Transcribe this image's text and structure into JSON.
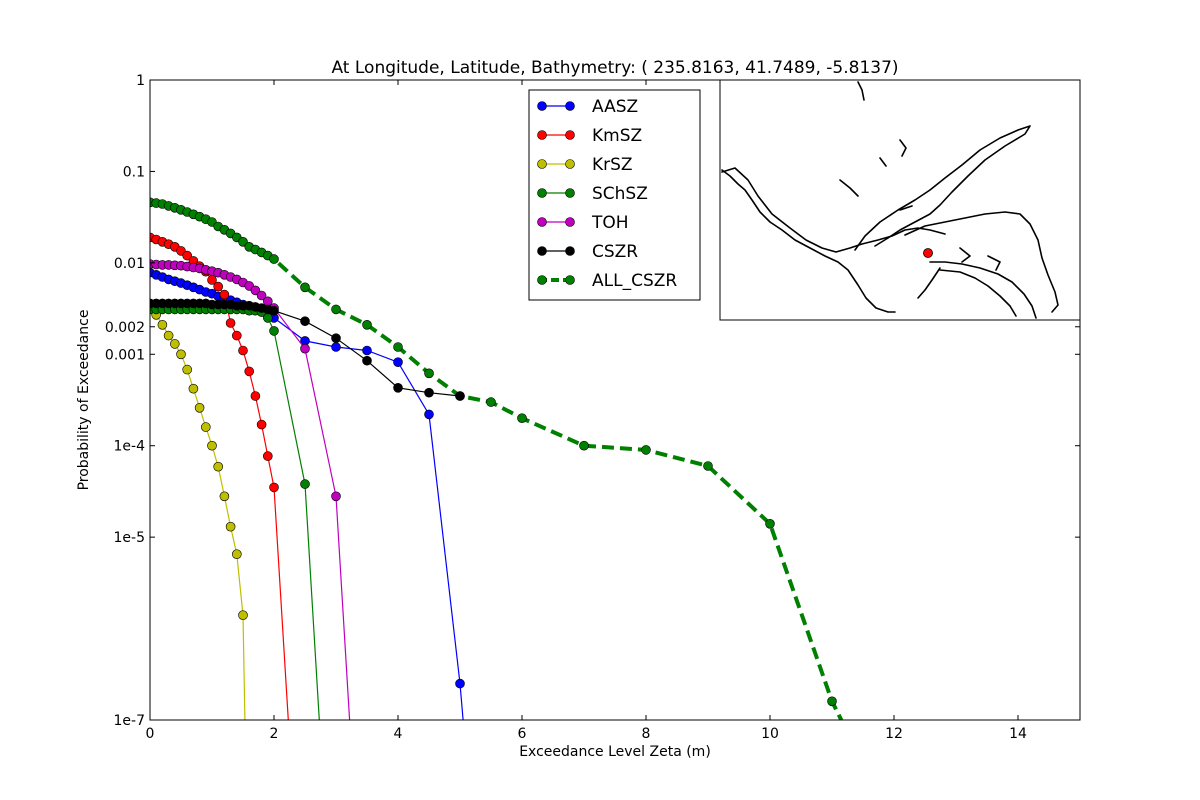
{
  "chart_data": {
    "type": "line",
    "title": "At Longitude, Latitude, Bathymetry:  ( 235.8163,  41.7489,  -5.8137)",
    "xlabel": "Exceedance Level Zeta (m)",
    "ylabel": "Probability of Exceedance",
    "x_scale": "linear",
    "y_scale": "log",
    "xlim": [
      0,
      15
    ],
    "ylim": [
      1e-07,
      1
    ],
    "x_ticks": [
      0,
      2,
      4,
      6,
      8,
      10,
      12,
      14
    ],
    "x_tick_labels": [
      "0",
      "2",
      "4",
      "6",
      "8",
      "10",
      "12",
      "14"
    ],
    "y_ticks": [
      1e-07,
      1e-05,
      0.0001,
      0.001,
      0.002,
      0.01,
      0.1,
      1
    ],
    "y_tick_labels": [
      "1e-7",
      "1e-5",
      "1e-4",
      "0.001",
      "0.002",
      "0.01",
      "0.1",
      "1"
    ],
    "grid": false,
    "legend_position": "upper center",
    "series": [
      {
        "name": "AASZ",
        "color": "#0000ff",
        "dashed": false,
        "line_end": [
          5.05,
          1e-07
        ],
        "x": [
          0,
          0.1,
          0.2,
          0.3,
          0.4,
          0.5,
          0.6,
          0.7,
          0.8,
          0.9,
          1.0,
          1.1,
          1.2,
          1.3,
          1.4,
          1.5,
          1.6,
          1.7,
          1.8,
          1.9,
          2.0,
          2.5,
          3.0,
          3.5,
          4.0,
          4.5,
          5.0
        ],
        "y": [
          0.0078,
          0.0074,
          0.007,
          0.0066,
          0.0063,
          0.006,
          0.0057,
          0.0054,
          0.0051,
          0.0048,
          0.0046,
          0.0043,
          0.0041,
          0.0039,
          0.0037,
          0.0035,
          0.0033,
          0.0031,
          0.0029,
          0.0027,
          0.0025,
          0.0014,
          0.0012,
          0.0011,
          0.00082,
          0.00022,
          2.5e-07
        ]
      },
      {
        "name": "KmSZ",
        "color": "#ff0000",
        "dashed": false,
        "line_end": [
          2.23,
          1e-07
        ],
        "x": [
          0,
          0.1,
          0.2,
          0.3,
          0.4,
          0.5,
          0.6,
          0.7,
          0.8,
          0.9,
          1.0,
          1.1,
          1.2,
          1.3,
          1.4,
          1.5,
          1.6,
          1.7,
          1.8,
          1.9,
          2.0
        ],
        "y": [
          0.019,
          0.018,
          0.017,
          0.016,
          0.015,
          0.0135,
          0.012,
          0.0105,
          0.0092,
          0.008,
          0.0065,
          0.0055,
          0.0045,
          0.0022,
          0.0016,
          0.0011,
          0.00065,
          0.00035,
          0.00017,
          7.7e-05,
          3.5e-05
        ]
      },
      {
        "name": "KrSZ",
        "color": "#bfbf00",
        "dashed": false,
        "line_end": [
          1.53,
          1e-07
        ],
        "x": [
          0.1,
          0.2,
          0.3,
          0.4,
          0.5,
          0.6,
          0.7,
          0.8,
          0.9,
          1.0,
          1.1,
          1.2,
          1.3,
          1.4,
          1.5
        ],
        "y": [
          0.0027,
          0.0021,
          0.0016,
          0.0013,
          0.001,
          0.00068,
          0.00042,
          0.00026,
          0.00016,
          0.0001,
          5.9e-05,
          2.8e-05,
          1.3e-05,
          6.5e-06,
          1.4e-06
        ]
      },
      {
        "name": "SChSZ",
        "color": "#008000",
        "dashed": false,
        "line_end": [
          2.73,
          1e-07
        ],
        "x": [
          0,
          0.1,
          0.2,
          0.3,
          0.4,
          0.5,
          0.6,
          0.7,
          0.8,
          0.9,
          1.0,
          1.1,
          1.2,
          1.3,
          1.4,
          1.5,
          1.6,
          1.7,
          1.8,
          1.9,
          2.0,
          2.5
        ],
        "y": [
          0.0031,
          0.0031,
          0.0031,
          0.0031,
          0.0031,
          0.0031,
          0.0031,
          0.0031,
          0.0031,
          0.0031,
          0.0031,
          0.0031,
          0.0031,
          0.0031,
          0.0031,
          0.0031,
          0.003,
          0.003,
          0.0029,
          0.0025,
          0.0018,
          3.8e-05
        ]
      },
      {
        "name": "TOH",
        "color": "#bf00bf",
        "dashed": false,
        "line_end": [
          3.22,
          1e-07
        ],
        "x": [
          0,
          0.1,
          0.2,
          0.3,
          0.4,
          0.5,
          0.6,
          0.7,
          0.8,
          0.9,
          1.0,
          1.1,
          1.2,
          1.3,
          1.4,
          1.5,
          1.6,
          1.7,
          1.8,
          1.9,
          2.0,
          2.5,
          3.0
        ],
        "y": [
          0.0097,
          0.0096,
          0.0095,
          0.0095,
          0.0094,
          0.0093,
          0.0091,
          0.0089,
          0.0087,
          0.0084,
          0.0081,
          0.0078,
          0.0074,
          0.007,
          0.0066,
          0.0061,
          0.0056,
          0.005,
          0.0044,
          0.0038,
          0.0032,
          0.00115,
          2.8e-05
        ]
      },
      {
        "name": "CSZR",
        "color": "#000000",
        "dashed": false,
        "line_end": null,
        "x": [
          0,
          0.1,
          0.2,
          0.3,
          0.4,
          0.5,
          0.6,
          0.7,
          0.8,
          0.9,
          1.0,
          1.1,
          1.2,
          1.3,
          1.4,
          1.5,
          1.6,
          1.7,
          1.8,
          1.9,
          2.0,
          2.5,
          3.0,
          3.5,
          4.0,
          4.5,
          5.0
        ],
        "y": [
          0.0036,
          0.0036,
          0.0036,
          0.0036,
          0.0036,
          0.0036,
          0.0036,
          0.0036,
          0.0036,
          0.0036,
          0.0035,
          0.0035,
          0.0035,
          0.0035,
          0.0034,
          0.0034,
          0.0034,
          0.0033,
          0.0032,
          0.0031,
          0.003,
          0.0023,
          0.0015,
          0.00085,
          0.00043,
          0.00038,
          0.00035
        ]
      },
      {
        "name": "ALL_CSZR",
        "color": "#008000",
        "dashed": true,
        "line_end": [
          11.15,
          1e-07
        ],
        "x": [
          0,
          0.1,
          0.2,
          0.3,
          0.4,
          0.5,
          0.6,
          0.7,
          0.8,
          0.9,
          1.0,
          1.1,
          1.2,
          1.3,
          1.4,
          1.5,
          1.6,
          1.7,
          1.8,
          1.9,
          2.0,
          2.5,
          3.0,
          3.5,
          4.0,
          4.5,
          5.0,
          5.5,
          6.0,
          7.0,
          8.0,
          9.0,
          10.0,
          11.0
        ],
        "y": [
          0.046,
          0.045,
          0.044,
          0.042,
          0.04,
          0.038,
          0.036,
          0.034,
          0.032,
          0.03,
          0.028,
          0.025,
          0.023,
          0.021,
          0.019,
          0.017,
          0.015,
          0.014,
          0.013,
          0.012,
          0.011,
          0.0054,
          0.0031,
          0.0021,
          0.0012,
          0.00062,
          0.00035,
          0.0003,
          0.0002,
          0.0001,
          9e-05,
          6e-05,
          1.4e-05,
          1.6e-07
        ]
      }
    ]
  }
}
